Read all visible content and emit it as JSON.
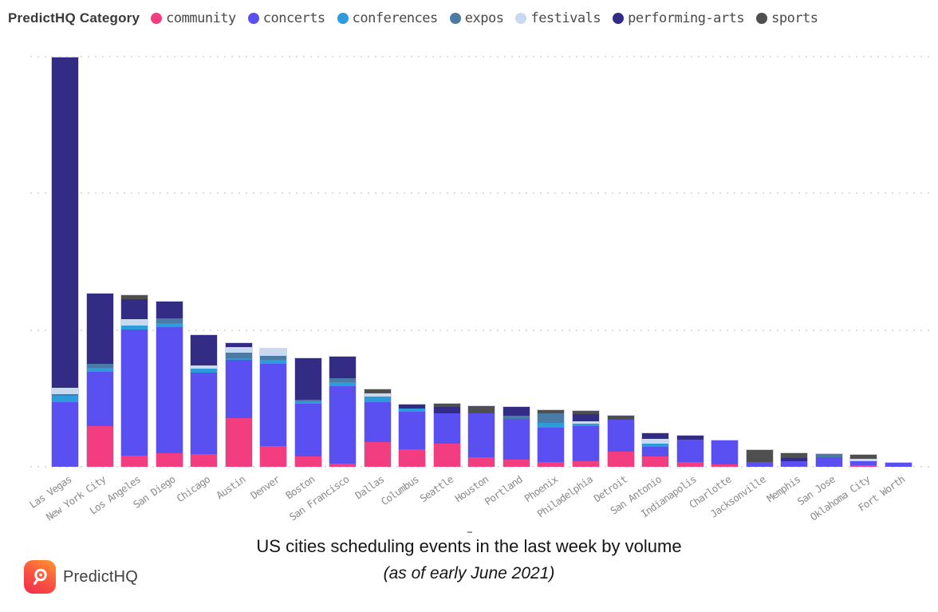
{
  "legend": {
    "title": "PredictHQ Category",
    "items": [
      {
        "label": "community",
        "color": "#f23d80"
      },
      {
        "label": "concerts",
        "color": "#5a4ff0"
      },
      {
        "label": "conferences",
        "color": "#2e9bda"
      },
      {
        "label": "expos",
        "color": "#4a7ba4"
      },
      {
        "label": "festivals",
        "color": "#c9d9f0"
      },
      {
        "label": "performing-arts",
        "color": "#322c85"
      },
      {
        "label": "sports",
        "color": "#4f4f4f"
      }
    ]
  },
  "chart_data": {
    "type": "bar",
    "stacked": true,
    "title": "US cities scheduling events in the last week by volume",
    "subtitle": "(as of early June 2021)",
    "ylabel": "",
    "xlabel": "",
    "y_axis_labels_visible": false,
    "value_units": "relative volume (top gridline = 100, y-axis unlabeled in source)",
    "ylim": [
      0,
      100
    ],
    "gridlines": {
      "style": "dotted",
      "positions": [
        0,
        33.3,
        66.7,
        100
      ]
    },
    "legend_position": "top",
    "stack_order": [
      "community",
      "concerts",
      "conferences",
      "expos",
      "festivals",
      "performing-arts",
      "sports"
    ],
    "series_colors": {
      "community": "#f23d80",
      "concerts": "#5a4ff0",
      "conferences": "#2e9bda",
      "expos": "#4a7ba4",
      "festivals": "#c9d9f0",
      "performing-arts": "#322c85",
      "sports": "#4f4f4f"
    },
    "cities": [
      {
        "name": "Las Vegas",
        "segments": {
          "community": 0,
          "concerts": 15.7,
          "conferences": 1.6,
          "expos": 0.4,
          "festivals": 1.6,
          "performing-arts": 80.3,
          "sports": 0
        }
      },
      {
        "name": "New York City",
        "segments": {
          "community": 9.9,
          "concerts": 13.2,
          "conferences": 1.0,
          "expos": 1.0,
          "festivals": 0,
          "performing-arts": 17.0,
          "sports": 0
        }
      },
      {
        "name": "Los Angeles",
        "segments": {
          "community": 2.7,
          "concerts": 30.7,
          "conferences": 1.0,
          "expos": 0,
          "festivals": 1.5,
          "performing-arts": 4.8,
          "sports": 1.0
        }
      },
      {
        "name": "San Diego",
        "segments": {
          "community": 3.3,
          "concerts": 30.7,
          "conferences": 1.0,
          "expos": 1.1,
          "festivals": 0,
          "performing-arts": 4.0,
          "sports": 0
        }
      },
      {
        "name": "Chicago",
        "segments": {
          "community": 3.1,
          "concerts": 19.8,
          "conferences": 1.0,
          "expos": 0,
          "festivals": 0.8,
          "performing-arts": 7.3,
          "sports": 0
        }
      },
      {
        "name": "Austin",
        "segments": {
          "community": 11.8,
          "concerts": 14.2,
          "conferences": 0.4,
          "expos": 1.4,
          "festivals": 1.3,
          "performing-arts": 1.0,
          "sports": 0
        }
      },
      {
        "name": "Denver",
        "segments": {
          "community": 5.0,
          "concerts": 20.0,
          "conferences": 1.0,
          "expos": 1.0,
          "festivals": 1.7,
          "performing-arts": 0,
          "sports": 0
        }
      },
      {
        "name": "Boston",
        "segments": {
          "community": 2.5,
          "concerts": 12.8,
          "conferences": 0.6,
          "expos": 0.5,
          "festivals": 0,
          "performing-arts": 10.0,
          "sports": 0
        }
      },
      {
        "name": "San Francisco",
        "segments": {
          "community": 0.8,
          "concerts": 18.8,
          "conferences": 1.0,
          "expos": 1.0,
          "festivals": 0,
          "performing-arts": 5.2,
          "sports": 0
        }
      },
      {
        "name": "Dallas",
        "segments": {
          "community": 6.0,
          "concerts": 9.7,
          "conferences": 1.4,
          "expos": 0,
          "festivals": 0.7,
          "performing-arts": 0,
          "sports": 1.1
        }
      },
      {
        "name": "Columbus",
        "segments": {
          "community": 4.3,
          "concerts": 9.1,
          "conferences": 0.8,
          "expos": 0,
          "festivals": 0,
          "performing-arts": 1.0,
          "sports": 0
        }
      },
      {
        "name": "Seattle",
        "segments": {
          "community": 5.6,
          "concerts": 7.4,
          "conferences": 0,
          "expos": 0,
          "festivals": 0,
          "performing-arts": 1.6,
          "sports": 0.8
        }
      },
      {
        "name": "Houston",
        "segments": {
          "community": 2.3,
          "concerts": 10.7,
          "conferences": 0,
          "expos": 0,
          "festivals": 0,
          "performing-arts": 0,
          "sports": 1.7
        }
      },
      {
        "name": "Portland",
        "segments": {
          "community": 1.7,
          "concerts": 9.9,
          "conferences": 0,
          "expos": 0.8,
          "festivals": 0,
          "performing-arts": 2.1,
          "sports": 0
        }
      },
      {
        "name": "Phoenix",
        "segments": {
          "community": 1.2,
          "concerts": 8.3,
          "conferences": 1.2,
          "expos": 2.3,
          "festivals": 0,
          "performing-arts": 0,
          "sports": 0.9
        }
      },
      {
        "name": "Philadelphia",
        "segments": {
          "community": 1.4,
          "concerts": 8.5,
          "conferences": 0.6,
          "expos": 0,
          "festivals": 0.6,
          "performing-arts": 1.7,
          "sports": 0.8
        }
      },
      {
        "name": "Detroit",
        "segments": {
          "community": 3.7,
          "concerts": 7.8,
          "conferences": 0,
          "expos": 0,
          "festivals": 0,
          "performing-arts": 0,
          "sports": 1.0
        }
      },
      {
        "name": "San Antonio",
        "segments": {
          "community": 2.5,
          "concerts": 2.3,
          "conferences": 0.8,
          "expos": 0,
          "festivals": 1.2,
          "performing-arts": 1.3,
          "sports": 0
        }
      },
      {
        "name": "Indianapolis",
        "segments": {
          "community": 1.2,
          "concerts": 5.4,
          "conferences": 0,
          "expos": 0,
          "festivals": 0,
          "performing-arts": 1.0,
          "sports": 0
        }
      },
      {
        "name": "Charlotte",
        "segments": {
          "community": 0.6,
          "concerts": 5.9,
          "conferences": 0,
          "expos": 0,
          "festivals": 0,
          "performing-arts": 0,
          "sports": 0
        }
      },
      {
        "name": "Jacksonville",
        "segments": {
          "community": 0,
          "concerts": 1.2,
          "conferences": 0,
          "expos": 0,
          "festivals": 0,
          "performing-arts": 0,
          "sports": 2.9
        }
      },
      {
        "name": "Memphis",
        "segments": {
          "community": 0,
          "concerts": 1.4,
          "conferences": 0,
          "expos": 0,
          "festivals": 0,
          "performing-arts": 0.8,
          "sports": 1.2
        }
      },
      {
        "name": "San Jose",
        "segments": {
          "community": 0,
          "concerts": 2.3,
          "conferences": 0,
          "expos": 0.9,
          "festivals": 0,
          "performing-arts": 0,
          "sports": 0
        }
      },
      {
        "name": "Oklahoma City",
        "segments": {
          "community": 0.4,
          "concerts": 0.9,
          "conferences": 0,
          "expos": 0,
          "festivals": 0.7,
          "performing-arts": 0,
          "sports": 1.0
        }
      },
      {
        "name": "Fort Worth",
        "segments": {
          "community": 0,
          "concerts": 1.0,
          "conferences": 0,
          "expos": 0,
          "festivals": 0,
          "performing-arts": 0,
          "sports": 0
        }
      }
    ]
  },
  "footer": {
    "logo_text": "PredictHQ"
  }
}
